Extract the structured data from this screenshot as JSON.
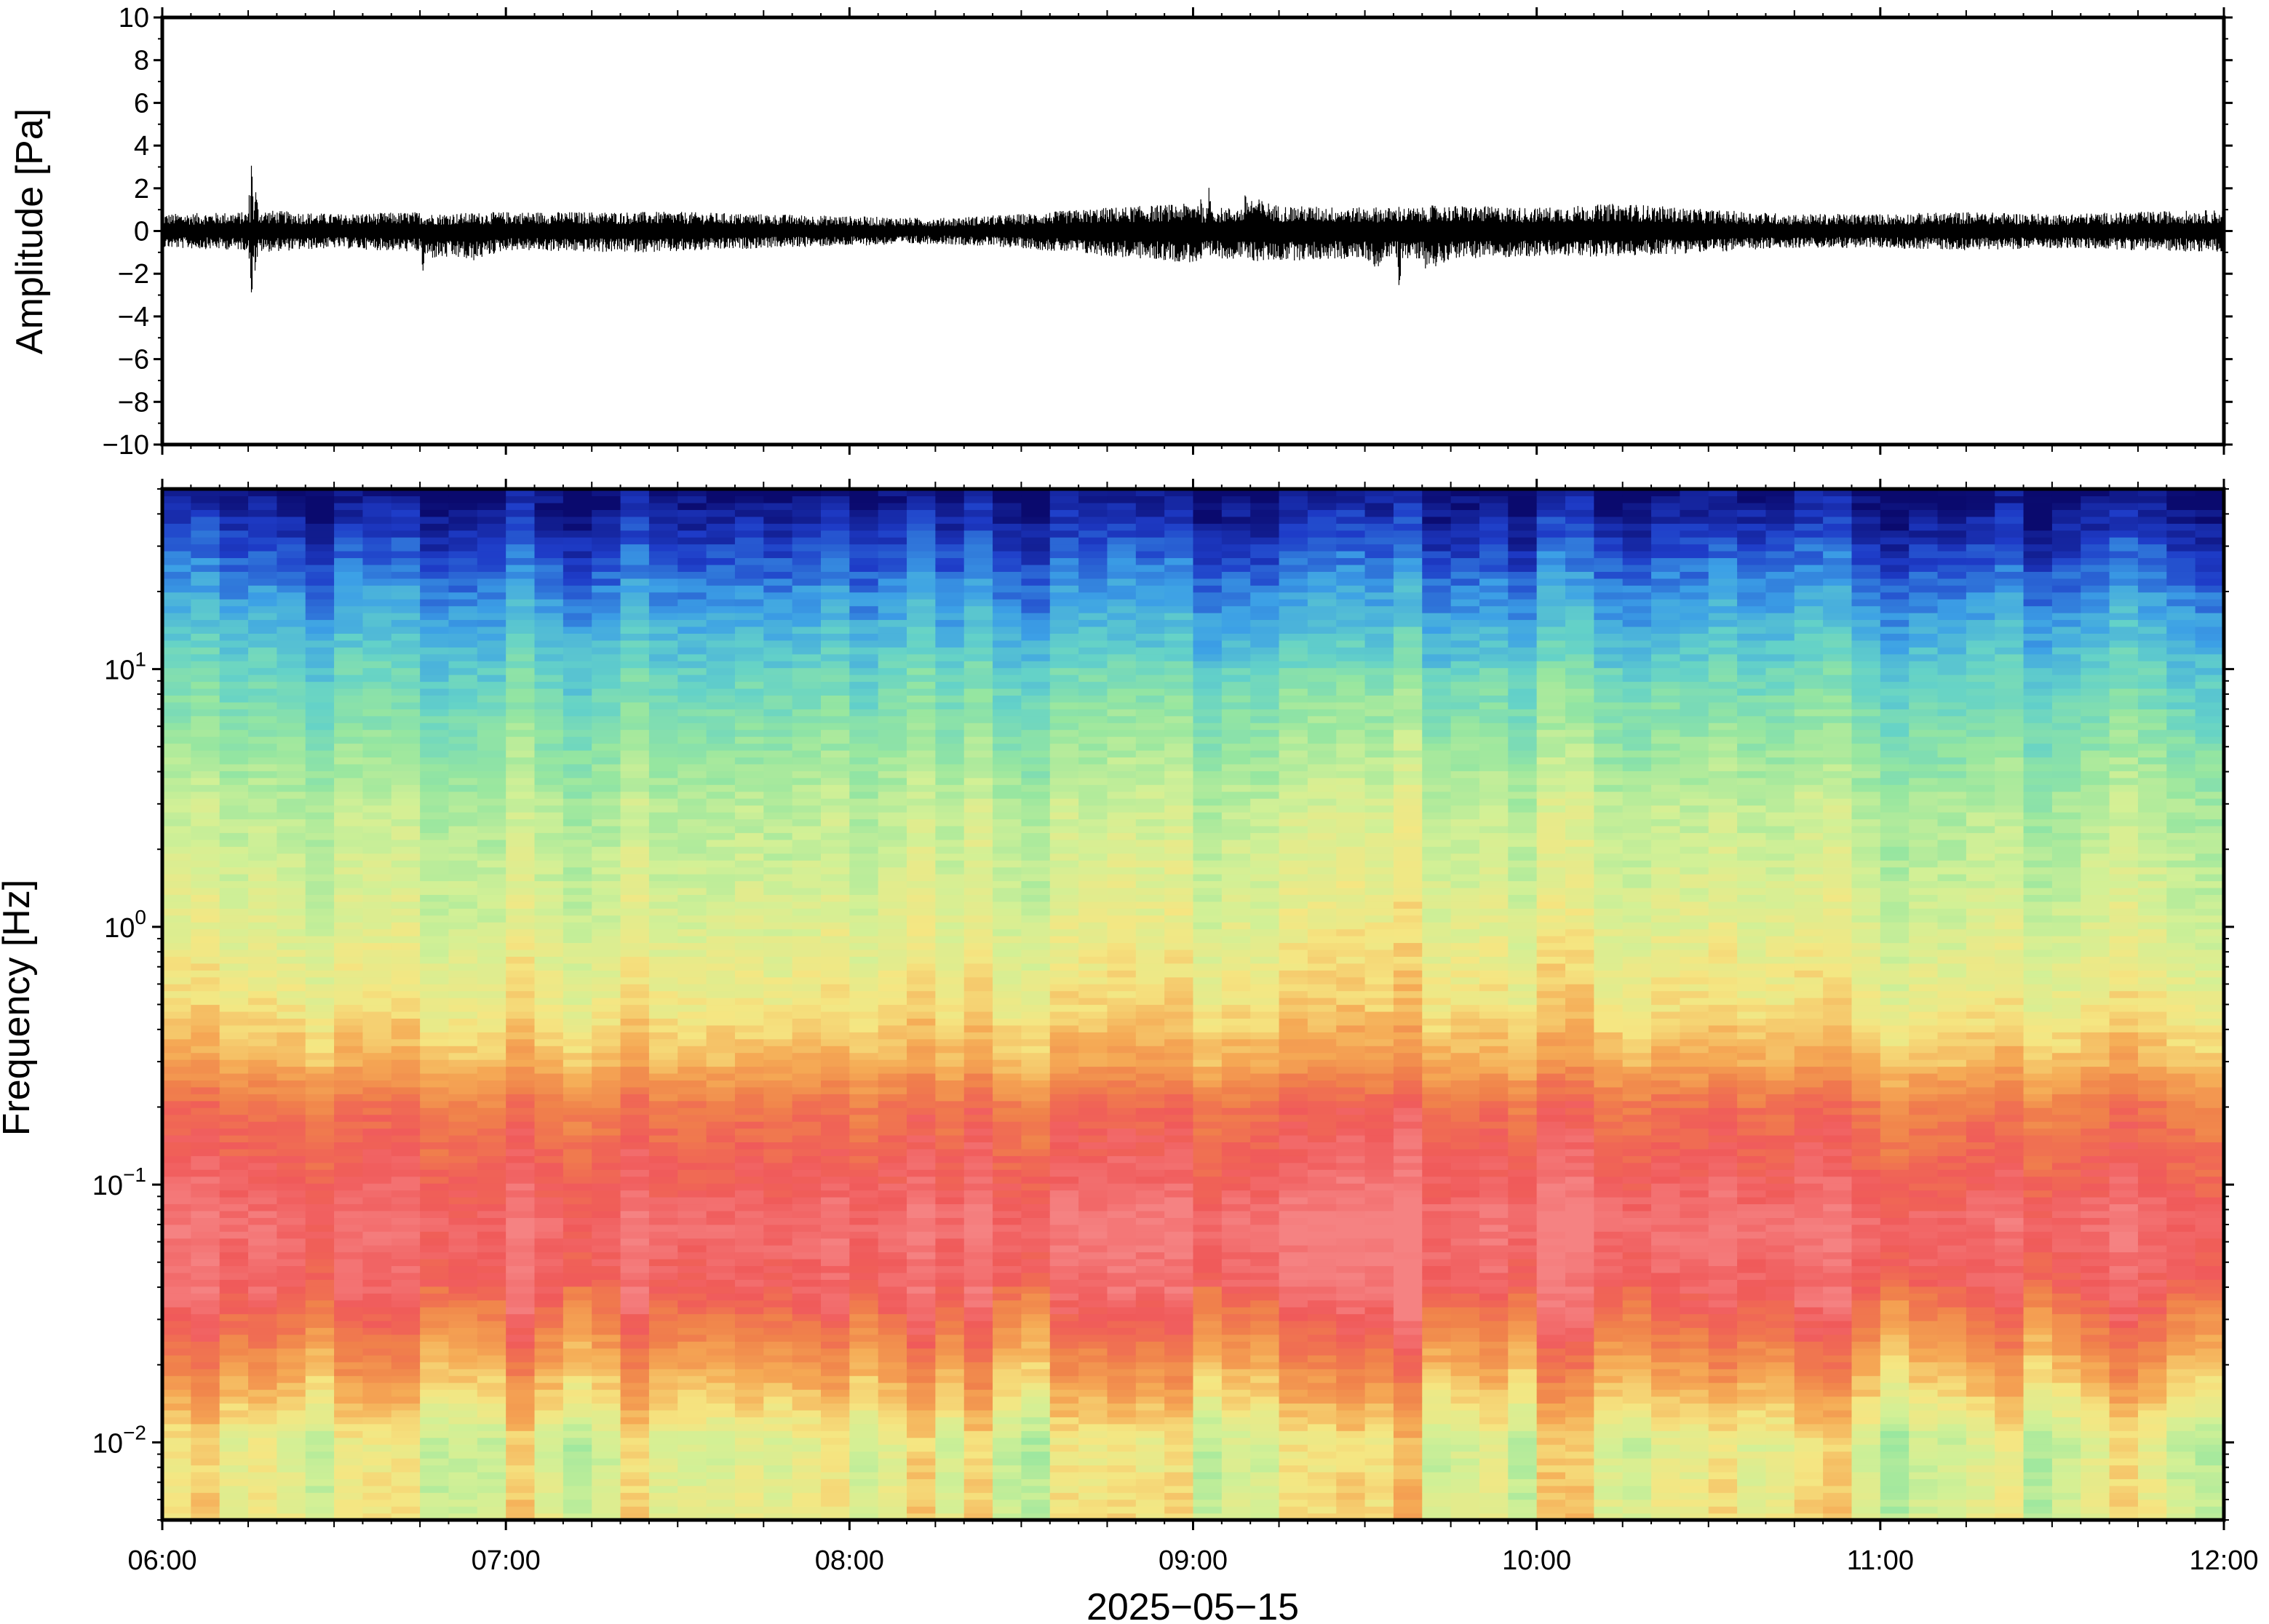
{
  "chart_data": [
    {
      "type": "line",
      "panel": "waveform",
      "ylabel": "Amplitude [Pa]",
      "xlim": [
        "06:00",
        "12:00"
      ],
      "ylim": [
        -10,
        10
      ],
      "y_ticks": [
        10,
        8,
        6,
        4,
        2,
        0,
        -2,
        -4,
        -6,
        -8,
        -10
      ],
      "y_tick_labels": [
        "10",
        "8",
        "6",
        "4",
        "2",
        "0",
        "−2",
        "−4",
        "−6",
        "−8",
        "−10"
      ],
      "envelope": {
        "t_hours": [
          6.0,
          6.25,
          6.26,
          6.28,
          6.5,
          6.75,
          6.76,
          7.0,
          7.25,
          7.5,
          7.75,
          8.0,
          8.25,
          8.5,
          8.75,
          9.0,
          9.05,
          9.25,
          9.5,
          9.6,
          9.75,
          10.0,
          10.25,
          10.5,
          10.75,
          11.0,
          11.25,
          11.5,
          11.75,
          12.0
        ],
        "max": [
          0.8,
          0.9,
          3.9,
          1.0,
          0.8,
          0.9,
          0.8,
          0.9,
          0.9,
          0.9,
          0.8,
          0.7,
          0.6,
          0.8,
          1.1,
          1.3,
          2.2,
          1.2,
          1.1,
          1.2,
          1.2,
          1.1,
          1.3,
          1.0,
          0.8,
          0.8,
          0.9,
          0.8,
          0.9,
          1.0
        ],
        "min": [
          -0.8,
          -0.9,
          -3.1,
          -1.0,
          -0.8,
          -1.0,
          -2.2,
          -0.9,
          -1.0,
          -1.0,
          -0.8,
          -0.7,
          -0.6,
          -0.8,
          -1.2,
          -1.5,
          -1.5,
          -1.4,
          -1.3,
          -2.6,
          -1.3,
          -1.2,
          -1.2,
          -1.0,
          -0.8,
          -0.8,
          -0.9,
          -0.8,
          -0.9,
          -1.0
        ]
      }
    },
    {
      "type": "heatmap",
      "panel": "spectrogram",
      "ylabel": "Frequency [Hz]",
      "xlabel": "2025−05−15",
      "y_scale": "log",
      "ylim": [
        0.005,
        50
      ],
      "y_ticks": [
        0.01,
        0.1,
        1,
        10
      ],
      "y_tick_labels": [
        {
          "base": "10",
          "exp": "−2"
        },
        {
          "base": "10",
          "exp": "−1"
        },
        {
          "base": "10",
          "exp": "0"
        },
        {
          "base": "10",
          "exp": "1"
        }
      ],
      "x_ticks": [
        "06:00",
        "07:00",
        "08:00",
        "09:00",
        "10:00",
        "11:00",
        "12:00"
      ],
      "colormap": [
        "#0a0a6e",
        "#1e3cc8",
        "#3ca0e6",
        "#64d2c8",
        "#96e6a0",
        "#d2f096",
        "#f5e682",
        "#f5aa55",
        "#f0824b",
        "#f05a5a",
        "#f58282"
      ],
      "power_profile": {
        "freq_hz": [
          0.005,
          0.01,
          0.02,
          0.04,
          0.07,
          0.1,
          0.2,
          0.3,
          0.5,
          1,
          3,
          10,
          20,
          50
        ],
        "level": [
          0.55,
          0.52,
          0.72,
          0.9,
          0.95,
          0.9,
          0.82,
          0.68,
          0.58,
          0.52,
          0.45,
          0.3,
          0.18,
          0.0
        ]
      }
    }
  ]
}
